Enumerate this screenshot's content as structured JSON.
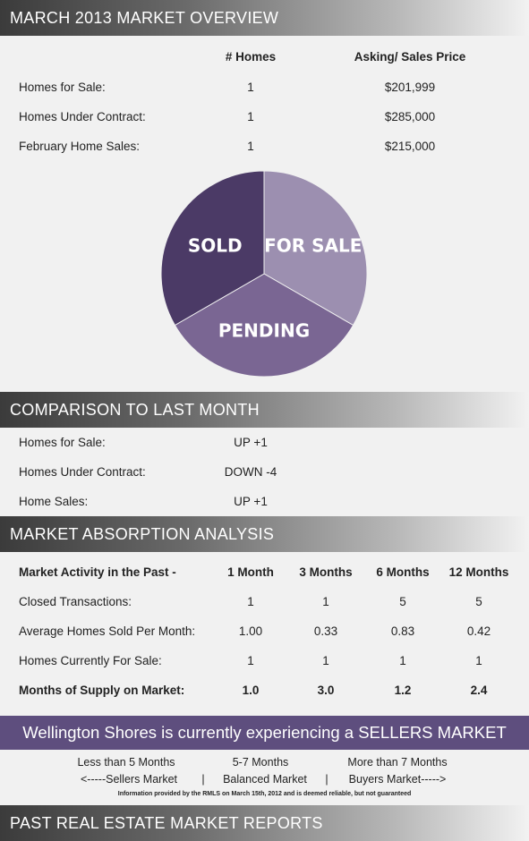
{
  "overview": {
    "header": "MARCH 2013 MARKET OVERVIEW",
    "col_homes": "# Homes",
    "col_price": "Asking/ Sales Price",
    "rows": [
      {
        "label": "Homes for Sale:",
        "homes": "1",
        "price": "$201,999"
      },
      {
        "label": "Homes Under Contract:",
        "homes": "1",
        "price": "$285,000"
      },
      {
        "label": "February Home Sales:",
        "homes": "1",
        "price": "$215,000"
      }
    ]
  },
  "chart_data": {
    "type": "pie",
    "categories": [
      "SOLD",
      "FOR SALE",
      "PENDING"
    ],
    "values": [
      1,
      1,
      1
    ],
    "colors": [
      "#4b3a66",
      "#9c8fb0",
      "#7a6693"
    ]
  },
  "comparison": {
    "header": "COMPARISON TO LAST MONTH",
    "rows": [
      {
        "label": "Homes for Sale:",
        "value": "UP +1"
      },
      {
        "label": "Homes Under Contract:",
        "value": "DOWN -4"
      },
      {
        "label": "Home Sales:",
        "value": "UP +1"
      }
    ]
  },
  "absorption": {
    "header": "MARKET ABSORPTION ANALYSIS",
    "columns": [
      "Market Activity in the Past -",
      "1 Month",
      "3 Months",
      "6 Months",
      "12 Months"
    ],
    "rows": [
      {
        "label": "Closed Transactions:",
        "values": [
          "1",
          "1",
          "5",
          "5"
        ]
      },
      {
        "label": "Average Homes Sold Per Month:",
        "values": [
          "1.00",
          "0.33",
          "0.83",
          "0.42"
        ]
      },
      {
        "label": "Homes Currently For Sale:",
        "values": [
          "1",
          "1",
          "1",
          "1"
        ]
      },
      {
        "label": "Months of Supply on Market:",
        "values": [
          "1.0",
          "3.0",
          "1.2",
          "2.4"
        ]
      }
    ]
  },
  "banner": "Wellington Shores is currently experiencing a SELLERS MARKET",
  "legend": {
    "top": [
      "Less than 5 Months",
      "5-7 Months",
      "More than 7 Months"
    ],
    "bottom": [
      "<-----Sellers Market",
      "|",
      "Balanced Market",
      "|",
      "Buyers Market----->"
    ]
  },
  "footnote": "Information provided by the RMLS on March 15th, 2012 and is deemed reliable, but not guaranteed",
  "past_reports_header": "PAST REAL ESTATE MARKET REPORTS",
  "colors": {
    "banner": "#5e4e7e"
  }
}
